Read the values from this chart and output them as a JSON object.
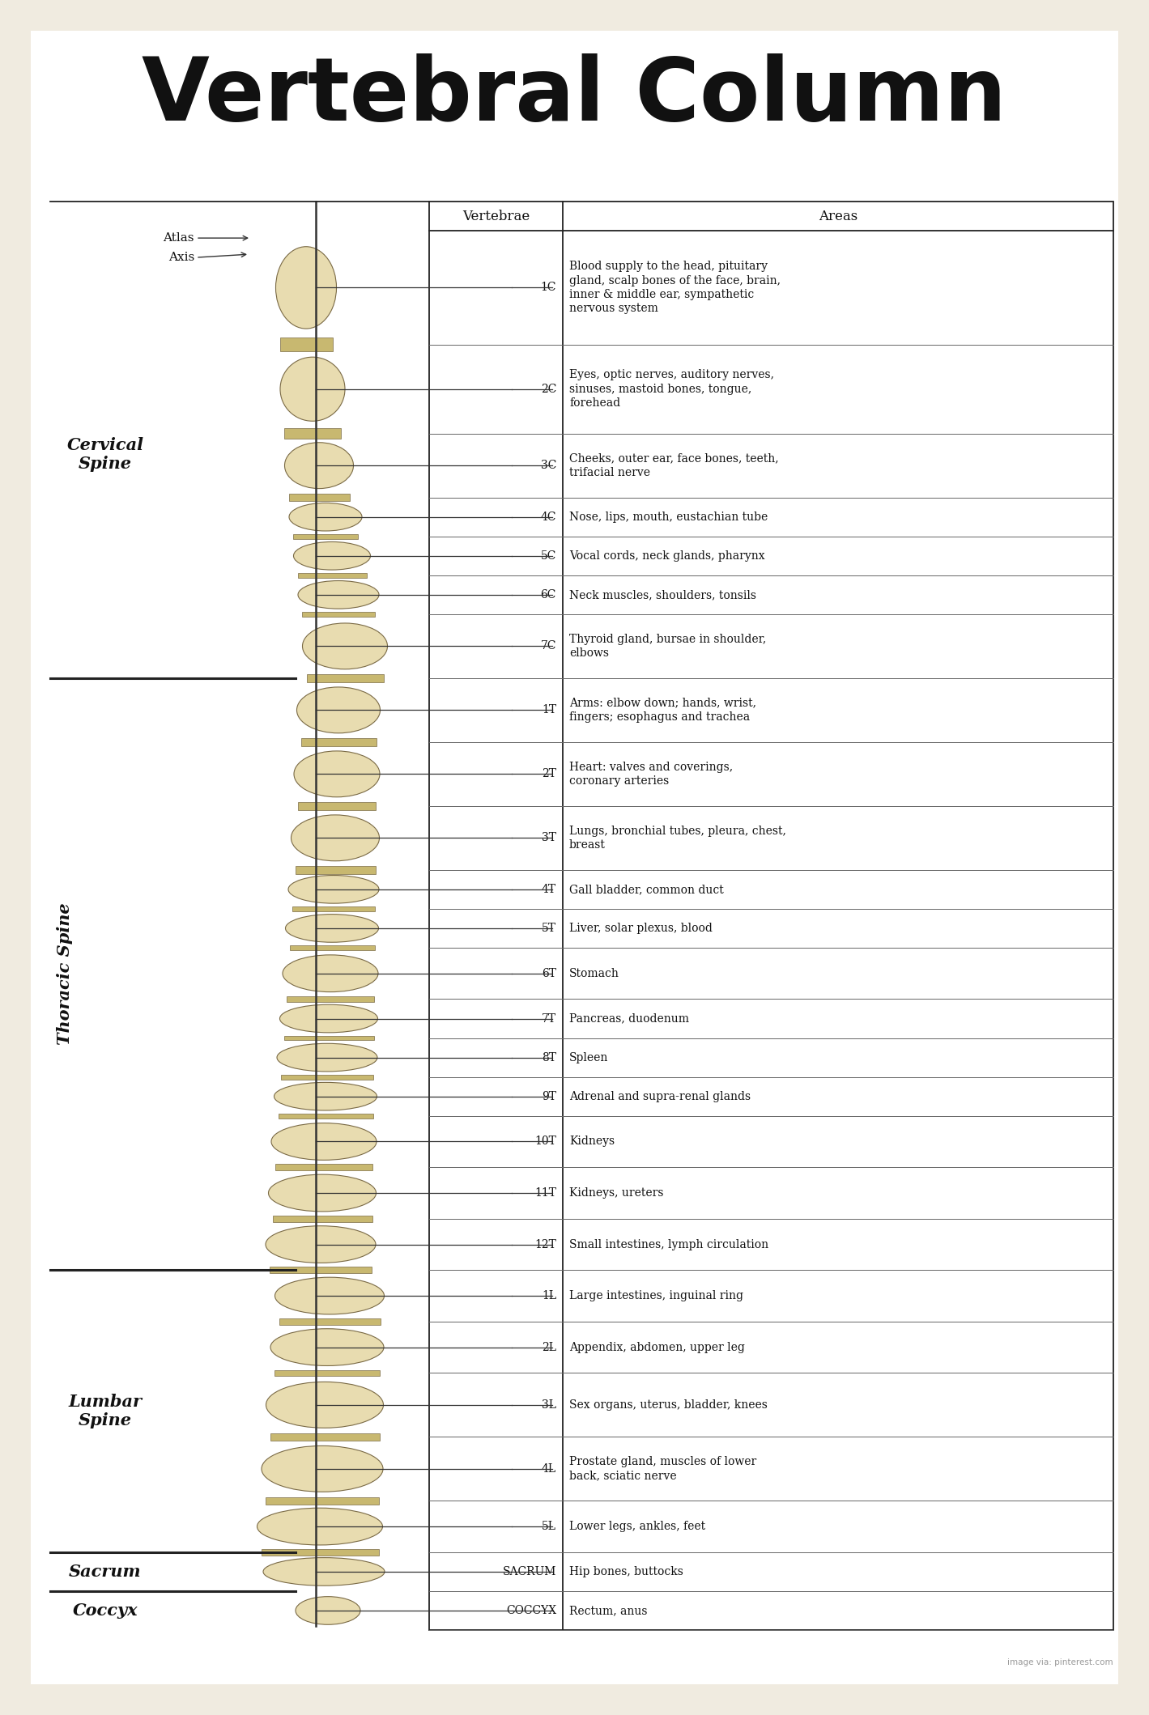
{
  "title": "Vertebral Column",
  "bg_color": "#f0ebe0",
  "inner_bg": "#ffffff",
  "table_header": [
    "Vertebrae",
    "Areas"
  ],
  "rows": [
    {
      "vertebra": "1C",
      "area": "Blood supply to the head, pituitary\ngland, scalp bones of the face, brain,\ninner & middle ear, sympathetic\nnervous system",
      "lines": 4
    },
    {
      "vertebra": "2C",
      "area": "Eyes, optic nerves, auditory nerves,\nsinuses, mastoid bones, tongue,\nforehead",
      "lines": 3
    },
    {
      "vertebra": "3C",
      "area": "Cheeks, outer ear, face bones, teeth,\ntrifacial nerve",
      "lines": 2
    },
    {
      "vertebra": "4C",
      "area": "Nose, lips, mouth, eustachian tube",
      "lines": 1
    },
    {
      "vertebra": "5C",
      "area": "Vocal cords, neck glands, pharynx",
      "lines": 1
    },
    {
      "vertebra": "6C",
      "area": "Neck muscles, shoulders, tonsils",
      "lines": 1
    },
    {
      "vertebra": "7C",
      "area": "Thyroid gland, bursae in shoulder,\nelbows",
      "lines": 2
    },
    {
      "vertebra": "1T",
      "area": "Arms: elbow down; hands, wrist,\nfingers; esophagus and trachea",
      "lines": 2
    },
    {
      "vertebra": "2T",
      "area": "Heart: valves and coverings,\ncoronary arteries",
      "lines": 2
    },
    {
      "vertebra": "3T",
      "area": "Lungs, bronchial tubes, pleura, chest,\nbreast",
      "lines": 2
    },
    {
      "vertebra": "4T",
      "area": "Gall bladder, common duct",
      "lines": 1
    },
    {
      "vertebra": "5T",
      "area": "Liver, solar plexus, blood",
      "lines": 1
    },
    {
      "vertebra": "6T",
      "area": "Stomach",
      "lines": 1.5
    },
    {
      "vertebra": "7T",
      "area": "Pancreas, duodenum",
      "lines": 1
    },
    {
      "vertebra": "8T",
      "area": "Spleen",
      "lines": 1
    },
    {
      "vertebra": "9T",
      "area": "Adrenal and supra-renal glands",
      "lines": 1
    },
    {
      "vertebra": "10T",
      "area": "Kidneys",
      "lines": 1.5
    },
    {
      "vertebra": "11T",
      "area": "Kidneys, ureters",
      "lines": 1.5
    },
    {
      "vertebra": "12T",
      "area": "Small intestines, lymph circulation",
      "lines": 1.5
    },
    {
      "vertebra": "1L",
      "area": "Large intestines, inguinal ring",
      "lines": 1.5
    },
    {
      "vertebra": "2L",
      "area": "Appendix, abdomen, upper leg",
      "lines": 1.5
    },
    {
      "vertebra": "3L",
      "area": "Sex organs, uterus, bladder, knees",
      "lines": 2
    },
    {
      "vertebra": "4L",
      "area": "Prostate gland, muscles of lower\nback, sciatic nerve",
      "lines": 2
    },
    {
      "vertebra": "5L",
      "area": "Lower legs, ankles, feet",
      "lines": 1.5
    },
    {
      "vertebra": "SACRUM",
      "area": "Hip bones, buttocks",
      "lines": 1
    },
    {
      "vertebra": "COCCYX",
      "area": "Rectum, anus",
      "lines": 1
    }
  ],
  "sections": [
    {
      "label": "Cervical\nSpine",
      "rows": [
        0,
        6
      ],
      "bold": true,
      "rotation": 0
    },
    {
      "label": "Thoracic Spine",
      "rows": [
        7,
        18
      ],
      "bold": true,
      "rotation": 90
    },
    {
      "label": "Lumbar\nSpine",
      "rows": [
        19,
        23
      ],
      "bold": true,
      "rotation": 0
    },
    {
      "label": "Sacrum",
      "rows": [
        24,
        24
      ],
      "bold": true,
      "rotation": 0
    },
    {
      "label": "Coccyx",
      "rows": [
        25,
        25
      ],
      "bold": true,
      "rotation": 0
    }
  ],
  "sep_after_rows": [
    6,
    18,
    23,
    24
  ],
  "credit": "image via: pinterest.com"
}
